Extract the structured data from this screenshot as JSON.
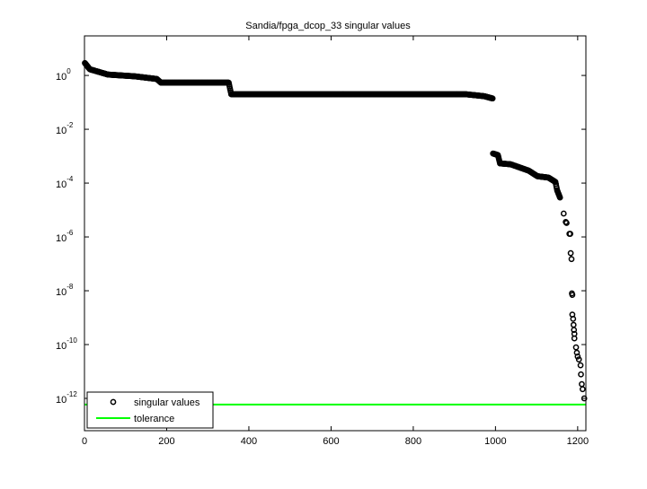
{
  "chart_data": {
    "type": "scatter",
    "title": "Sandia/fpga_dcop_33 singular values",
    "xlabel": "",
    "ylabel": "",
    "xlim": [
      0,
      1220
    ],
    "ylim_log10": [
      -13.2,
      1.47
    ],
    "y_scale": "log",
    "grid": false,
    "legend_placement": "bottom-left",
    "x_ticks": [
      "0",
      "200",
      "400",
      "600",
      "800",
      "1000",
      "1200"
    ],
    "x_tick_values": [
      0,
      200,
      400,
      600,
      800,
      1000,
      1200
    ],
    "y_tick_exponents": [
      0,
      -2,
      -4,
      -6,
      -8,
      -10,
      -12
    ],
    "y_tick_base": "10",
    "y_tick_labels": [
      "0",
      "-2",
      "-4",
      "-6",
      "-8",
      "-10",
      "-12"
    ],
    "series": [
      {
        "name": "singular values",
        "marker": "open-circle",
        "color": "#000000",
        "dense_profile": [
          [
            1,
            2.9
          ],
          [
            13,
            1.7
          ],
          [
            57,
            1.08
          ],
          [
            122,
            0.93
          ],
          [
            176,
            0.74
          ],
          [
            186,
            0.54
          ],
          [
            351,
            0.54
          ],
          [
            357,
            0.2
          ],
          [
            928,
            0.2
          ],
          [
            972,
            0.17
          ],
          [
            993,
            0.14
          ],
          [
            994,
            0.00126
          ],
          [
            1006,
            0.0011
          ],
          [
            1011,
            0.00054
          ],
          [
            1037,
            0.0005
          ],
          [
            1081,
            0.00029
          ],
          [
            1102,
            0.00018
          ],
          [
            1129,
            0.00016
          ],
          [
            1146,
            0.00011
          ],
          [
            1150,
            5.4e-05
          ],
          [
            1157,
            2.9e-05
          ]
        ],
        "tail": [
          [
            1166,
            7.4e-06
          ],
          [
            1171,
            3.6e-06
          ],
          [
            1173,
            3.3e-06
          ],
          [
            1180,
            1.3e-06
          ],
          [
            1182,
            1.3e-06
          ],
          [
            1183,
            2.5e-07
          ],
          [
            1185,
            1.5e-07
          ],
          [
            1186,
            8e-09
          ],
          [
            1187,
            7e-09
          ],
          [
            1187,
            1.3e-09
          ],
          [
            1189,
            9e-10
          ],
          [
            1190,
            5.4e-10
          ],
          [
            1191,
            3.5e-10
          ],
          [
            1192,
            2.5e-10
          ],
          [
            1192,
            1.7e-10
          ],
          [
            1196,
            7.9e-11
          ],
          [
            1198,
            5e-11
          ],
          [
            1200,
            3.6e-11
          ],
          [
            1203,
            2.8e-11
          ],
          [
            1207,
            1.7e-11
          ],
          [
            1208,
            7.8e-12
          ],
          [
            1210,
            3.4e-12
          ],
          [
            1212,
            2.2e-12
          ],
          [
            1216,
            1e-12
          ]
        ]
      },
      {
        "name": "tolerance",
        "type": "line",
        "color": "#00ff00",
        "value": 5.9e-13
      }
    ]
  }
}
